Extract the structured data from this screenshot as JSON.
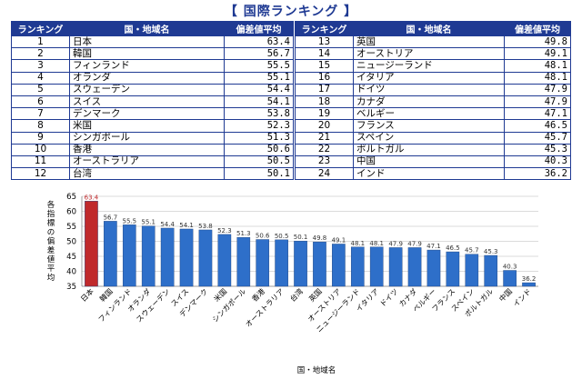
{
  "title": "【 国際ランキング 】",
  "table": {
    "headers": [
      "ランキング",
      "国・地域名",
      "偏差値平均"
    ],
    "rows": [
      {
        "rank": "1",
        "name": "日本",
        "score": "63.4"
      },
      {
        "rank": "2",
        "name": "韓国",
        "score": "56.7"
      },
      {
        "rank": "3",
        "name": "フィンランド",
        "score": "55.5"
      },
      {
        "rank": "4",
        "name": "オランダ",
        "score": "55.1"
      },
      {
        "rank": "5",
        "name": "スウェーデン",
        "score": "54.4"
      },
      {
        "rank": "6",
        "name": "スイス",
        "score": "54.1"
      },
      {
        "rank": "7",
        "name": "デンマーク",
        "score": "53.8"
      },
      {
        "rank": "8",
        "name": "米国",
        "score": "52.3"
      },
      {
        "rank": "9",
        "name": "シンガポール",
        "score": "51.3"
      },
      {
        "rank": "10",
        "name": "香港",
        "score": "50.6"
      },
      {
        "rank": "11",
        "name": "オーストラリア",
        "score": "50.5"
      },
      {
        "rank": "12",
        "name": "台湾",
        "score": "50.1"
      },
      {
        "rank": "13",
        "name": "英国",
        "score": "49.8"
      },
      {
        "rank": "14",
        "name": "オーストリア",
        "score": "49.1"
      },
      {
        "rank": "15",
        "name": "ニュージーランド",
        "score": "48.1"
      },
      {
        "rank": "16",
        "name": "イタリア",
        "score": "48.1"
      },
      {
        "rank": "17",
        "name": "ドイツ",
        "score": "47.9"
      },
      {
        "rank": "18",
        "name": "カナダ",
        "score": "47.9"
      },
      {
        "rank": "19",
        "name": "ベルギー",
        "score": "47.1"
      },
      {
        "rank": "20",
        "name": "フランス",
        "score": "46.5"
      },
      {
        "rank": "21",
        "name": "スペイン",
        "score": "45.7"
      },
      {
        "rank": "22",
        "name": "ポルトガル",
        "score": "45.3"
      },
      {
        "rank": "23",
        "name": "中国",
        "score": "40.3"
      },
      {
        "rank": "24",
        "name": "インド",
        "score": "36.2"
      }
    ]
  },
  "colors": {
    "header_bg": "#1f3a93",
    "bar_blue": "#2e6fc9",
    "bar_highlight": "#c0292b"
  },
  "chart_data": {
    "type": "bar",
    "categories": [
      "日本",
      "韓国",
      "フィンランド",
      "オランダ",
      "スウェーデン",
      "スイス",
      "デンマーク",
      "米国",
      "シンガポール",
      "香港",
      "オーストラリア",
      "台湾",
      "英国",
      "オーストリア",
      "ニュージーランド",
      "イタリア",
      "ドイツ",
      "カナダ",
      "ベルギー",
      "フランス",
      "スペイン",
      "ポルトガル",
      "中国",
      "インド"
    ],
    "values": [
      63.4,
      56.7,
      55.5,
      55.1,
      54.4,
      54.1,
      53.8,
      52.3,
      51.3,
      50.6,
      50.5,
      50.1,
      49.8,
      49.1,
      48.1,
      48.1,
      47.9,
      47.9,
      47.1,
      46.5,
      45.7,
      45.3,
      40.3,
      36.2
    ],
    "highlight_index": 0,
    "xlabel": "国・地域名",
    "ylabel": "各指標の偏差値平均",
    "ylim": [
      35,
      65
    ],
    "yticks": [
      35,
      40,
      45,
      50,
      55,
      60,
      65
    ],
    "grid": true
  }
}
